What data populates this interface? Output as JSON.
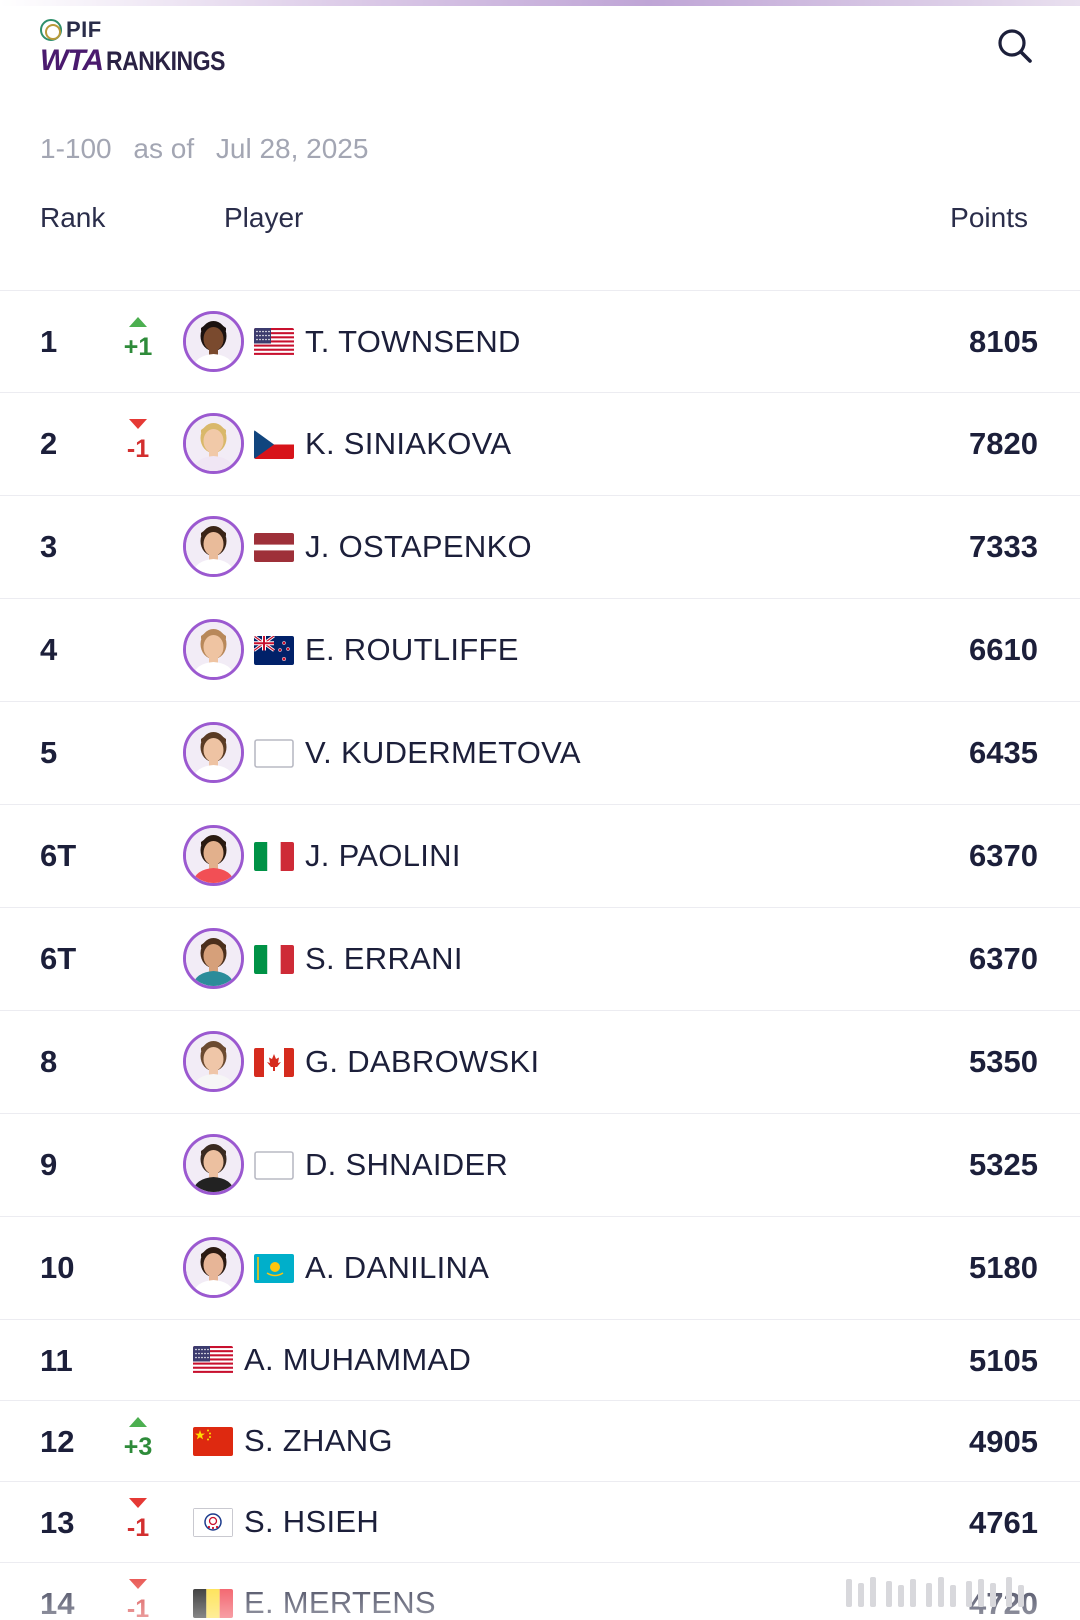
{
  "header": {
    "logo_top": "PIF",
    "logo_wta": "WTA",
    "logo_rankings": "RANKINGS",
    "search_icon": "search-icon"
  },
  "subtitle": {
    "range": "1-100",
    "as_of": "as of",
    "date": "Jul 28, 2025"
  },
  "columns": {
    "rank": "Rank",
    "player": "Player",
    "points": "Points"
  },
  "colors": {
    "brand_purple": "#4a1a6e",
    "avatar_ring": "#9b59d0",
    "up_green": "#4caf50",
    "down_red": "#e53935",
    "muted_text": "#a3a6b3"
  },
  "rows": [
    {
      "rank": "1",
      "move": "up",
      "move_label": "+1",
      "has_photo": true,
      "flag": "usa",
      "name": "T. TOWNSEND",
      "points": "8105"
    },
    {
      "rank": "2",
      "move": "down",
      "move_label": "-1",
      "has_photo": true,
      "flag": "czech",
      "name": "K. SINIAKOVA",
      "points": "7820"
    },
    {
      "rank": "3",
      "move": "none",
      "move_label": "",
      "has_photo": true,
      "flag": "latvia",
      "name": "J. OSTAPENKO",
      "points": "7333"
    },
    {
      "rank": "4",
      "move": "none",
      "move_label": "",
      "has_photo": true,
      "flag": "new-zealand",
      "name": "E. ROUTLIFFE",
      "points": "6610"
    },
    {
      "rank": "5",
      "move": "none",
      "move_label": "",
      "has_photo": true,
      "flag": "blank",
      "name": "V. KUDERMETOVA",
      "points": "6435"
    },
    {
      "rank": "6T",
      "move": "none",
      "move_label": "",
      "has_photo": true,
      "flag": "italy",
      "name": "J. PAOLINI",
      "points": "6370"
    },
    {
      "rank": "6T",
      "move": "none",
      "move_label": "",
      "has_photo": true,
      "flag": "italy",
      "name": "S. ERRANI",
      "points": "6370"
    },
    {
      "rank": "8",
      "move": "none",
      "move_label": "",
      "has_photo": true,
      "flag": "canada",
      "name": "G. DABROWSKI",
      "points": "5350"
    },
    {
      "rank": "9",
      "move": "none",
      "move_label": "",
      "has_photo": true,
      "flag": "blank",
      "name": "D. SHNAIDER",
      "points": "5325"
    },
    {
      "rank": "10",
      "move": "none",
      "move_label": "",
      "has_photo": true,
      "flag": "kazakhstan",
      "name": "A. DANILINA",
      "points": "5180"
    },
    {
      "rank": "11",
      "move": "none",
      "move_label": "",
      "has_photo": false,
      "flag": "usa",
      "name": "A. MUHAMMAD",
      "points": "5105"
    },
    {
      "rank": "12",
      "move": "up",
      "move_label": "+3",
      "has_photo": false,
      "flag": "china",
      "name": "S. ZHANG",
      "points": "4905"
    },
    {
      "rank": "13",
      "move": "down",
      "move_label": "-1",
      "has_photo": false,
      "flag": "chinese-taipei",
      "name": "S. HSIEH",
      "points": "4761"
    },
    {
      "rank": "14",
      "move": "down",
      "move_label": "-1",
      "has_photo": false,
      "flag": "belgium",
      "name": "E. MERTENS",
      "points": "4720"
    }
  ]
}
